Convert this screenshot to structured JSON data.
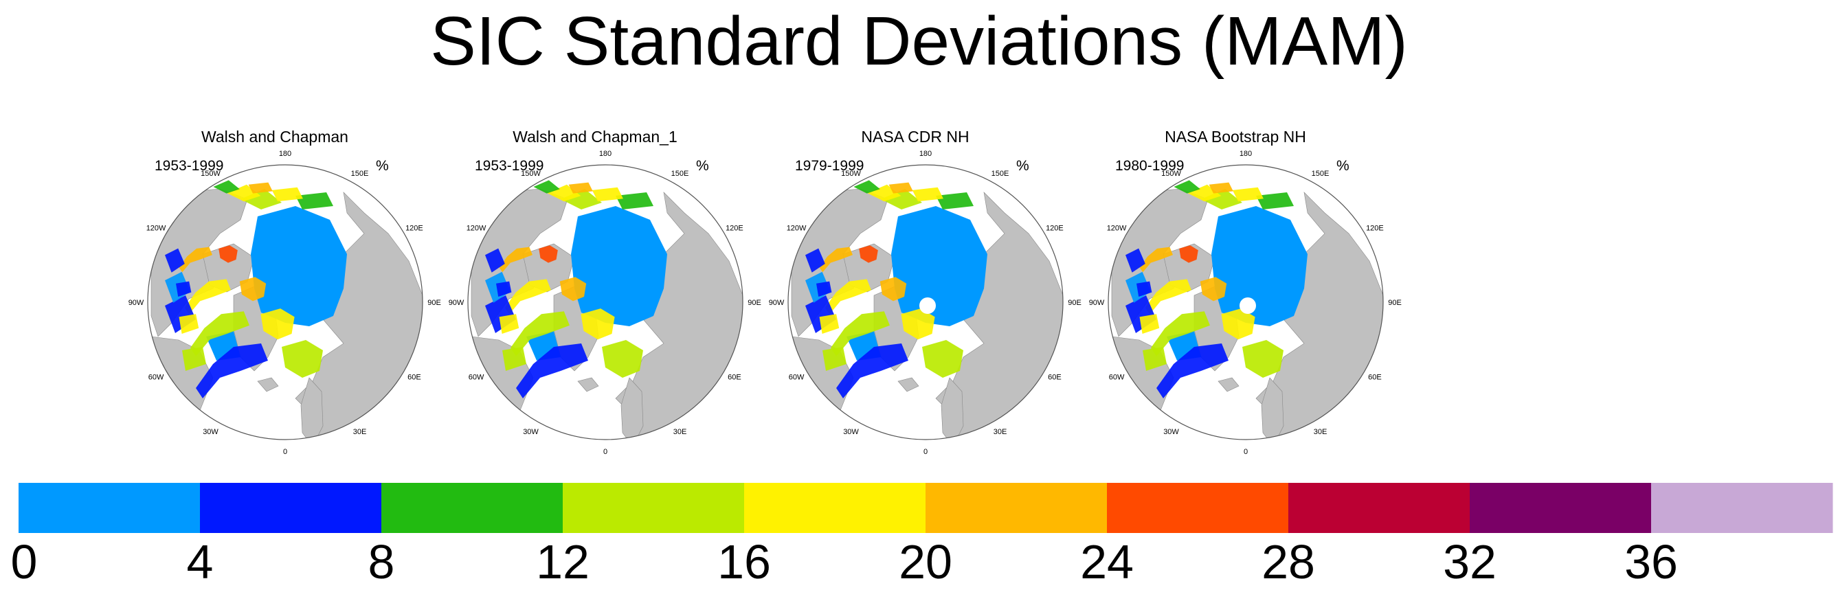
{
  "title": "SIC Standard Deviations (MAM)",
  "panels": [
    {
      "title": "Walsh and Chapman",
      "period": "1953-1999",
      "units": "%",
      "pole_hole": false
    },
    {
      "title": "Walsh and Chapman_1",
      "period": "1953-1999",
      "units": "%",
      "pole_hole": false
    },
    {
      "title": "NASA CDR NH",
      "period": "1979-1999",
      "units": "%",
      "pole_hole": true
    },
    {
      "title": "NASA Bootstrap NH",
      "period": "1980-1999",
      "units": "%",
      "pole_hole": true
    }
  ],
  "longitude_labels": [
    "180",
    "150E",
    "120E",
    "90E",
    "60E",
    "30E",
    "0",
    "30W",
    "60W",
    "90W",
    "120W",
    "150W"
  ],
  "colorbar": {
    "labels": [
      "0",
      "4",
      "8",
      "12",
      "16",
      "20",
      "24",
      "28",
      "32",
      "36"
    ],
    "colors": [
      "#0099ff",
      "#0018ff",
      "#22bb11",
      "#bbea00",
      "#fff200",
      "#ffb800",
      "#ff4a00",
      "#bb0033",
      "#7a0066",
      "#c8a8d6"
    ]
  },
  "colors": {
    "land": "#c0c0c0",
    "low_sd_ice": "#0099ff",
    "ocean": "#ffffff"
  }
}
